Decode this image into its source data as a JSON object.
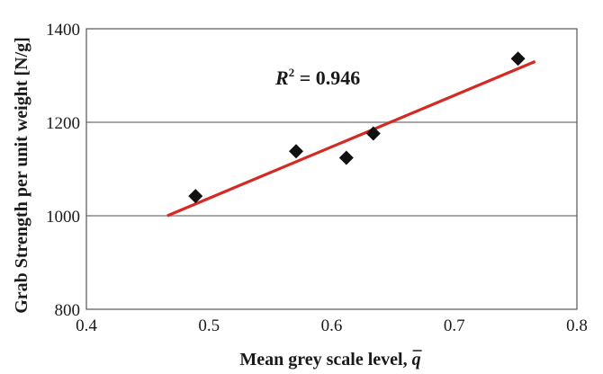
{
  "chart_data": {
    "type": "scatter",
    "xlabel": "Mean grey scale level, ",
    "xlabel_symbol": "q",
    "ylabel": "Grab Strength per unit weight [N/g]",
    "xlim": [
      0.4,
      0.8
    ],
    "ylim": [
      800,
      1400
    ],
    "x_ticks": [
      "0.4",
      "0.5",
      "0.6",
      "0.7",
      "0.8"
    ],
    "y_ticks": [
      "800",
      "1000",
      "1200",
      "1400"
    ],
    "grid": "horizontal",
    "points": [
      {
        "x": 0.489,
        "y": 1042
      },
      {
        "x": 0.571,
        "y": 1138
      },
      {
        "x": 0.612,
        "y": 1124
      },
      {
        "x": 0.634,
        "y": 1176
      },
      {
        "x": 0.752,
        "y": 1336
      }
    ],
    "trendline": {
      "x1": 0.466,
      "y1": 1000,
      "x2": 0.766,
      "y2": 1330
    },
    "annotation": {
      "prefix": "R",
      "sup": "2",
      "suffix": " = 0.946"
    },
    "colors": {
      "trendline": "#d42a24",
      "marker": "#111111",
      "grid": "#8a8a8a"
    }
  }
}
